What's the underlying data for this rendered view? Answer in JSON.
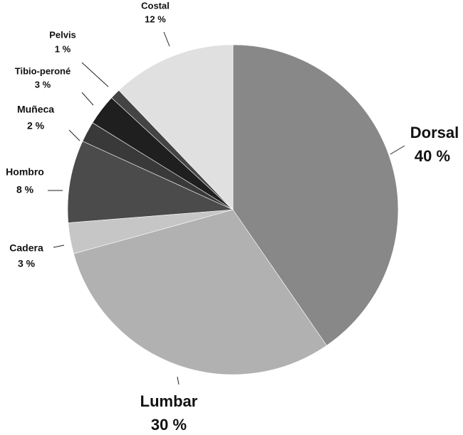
{
  "chart_data": {
    "type": "pie",
    "categories": [
      "Dorsal",
      "Lumbar",
      "Cadera",
      "Hombro",
      "Muñeca",
      "Tibio-peroné",
      "Pelvis",
      "Costal"
    ],
    "values": [
      40,
      30,
      3,
      8,
      2,
      3,
      1,
      12
    ],
    "value_labels": [
      "40 %",
      "30 %",
      "3 %",
      "8 %",
      "2 %",
      "3 %",
      "1 %",
      "12 %"
    ],
    "colors": [
      "#888888",
      "#b1b1b1",
      "#c6c6c6",
      "#4b4b4b",
      "#393939",
      "#1f1f1f",
      "#444444",
      "#e0e0e0"
    ]
  }
}
